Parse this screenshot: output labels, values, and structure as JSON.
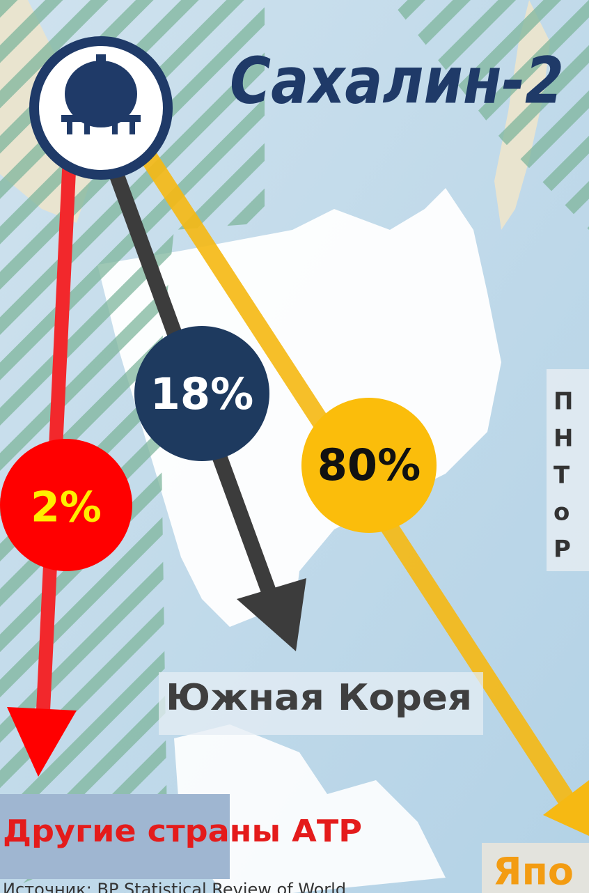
{
  "title": "Сахалин-2",
  "flows": [
    {
      "share": "80%",
      "destination": "Япо"
    },
    {
      "share": "18%",
      "destination": "Южная Корея"
    },
    {
      "share": "2%",
      "destination": "Другие страны АТР"
    }
  ],
  "side_note": [
    "П",
    "Н",
    "Т",
    "о",
    "Р"
  ],
  "source": "Источник: BP Statistical Review of World"
}
